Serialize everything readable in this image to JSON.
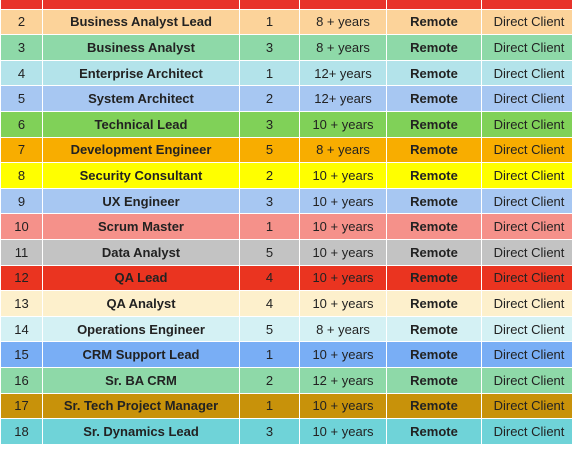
{
  "table": {
    "rows": [
      {
        "no": "",
        "role": "",
        "positions": "",
        "experience": "",
        "location": "",
        "client": "",
        "color": "#e8322a"
      },
      {
        "no": "2",
        "role": "Business Analyst Lead",
        "positions": "1",
        "experience": "8 + years",
        "location": "Remote",
        "client": "Direct Client",
        "color": "#fcd39a"
      },
      {
        "no": "3",
        "role": "Business Analyst",
        "positions": "3",
        "experience": "8 + years",
        "location": "Remote",
        "client": "Direct Client",
        "color": "#8ed9a8"
      },
      {
        "no": "4",
        "role": "Enterprise Architect",
        "positions": "1",
        "experience": "12+ years",
        "location": "Remote",
        "client": "Direct Client",
        "color": "#b3e3ea"
      },
      {
        "no": "5",
        "role": "System Architect",
        "positions": "2",
        "experience": "12+ years",
        "location": "Remote",
        "client": "Direct Client",
        "color": "#a7c7f2"
      },
      {
        "no": "6",
        "role": "Technical Lead",
        "positions": "3",
        "experience": "10 + years",
        "location": "Remote",
        "client": "Direct Client",
        "color": "#80d158"
      },
      {
        "no": "7",
        "role": "Development Engineer",
        "positions": "5",
        "experience": "8 + years",
        "location": "Remote",
        "client": "Direct Client",
        "color": "#f8ad00"
      },
      {
        "no": "8",
        "role": "Security Consultant",
        "positions": "2",
        "experience": "10 + years",
        "location": "Remote",
        "client": "Direct Client",
        "color": "#ffff00"
      },
      {
        "no": "9",
        "role": "UX Engineer",
        "positions": "3",
        "experience": "10 + years",
        "location": "Remote",
        "client": "Direct Client",
        "color": "#a7c7f2"
      },
      {
        "no": "10",
        "role": "Scrum Master",
        "positions": "1",
        "experience": "10 + years",
        "location": "Remote",
        "client": "Direct Client",
        "color": "#f5918a"
      },
      {
        "no": "11",
        "role": "Data Analyst",
        "positions": "5",
        "experience": "10 + years",
        "location": "Remote",
        "client": "Direct Client",
        "color": "#c3c3c3"
      },
      {
        "no": "12",
        "role": "QA Lead",
        "positions": "4",
        "experience": "10 + years",
        "location": "Remote",
        "client": "Direct Client",
        "color": "#ea3420"
      },
      {
        "no": "13",
        "role": "QA Analyst",
        "positions": "4",
        "experience": "10 + years",
        "location": "Remote",
        "client": "Direct Client",
        "color": "#fdf0cc"
      },
      {
        "no": "14",
        "role": "Operations Engineer",
        "positions": "5",
        "experience": "8 + years",
        "location": "Remote",
        "client": "Direct Client",
        "color": "#d4f1f4"
      },
      {
        "no": "15",
        "role": "CRM Support Lead",
        "positions": "1",
        "experience": "10 + years",
        "location": "Remote",
        "client": "Direct Client",
        "color": "#79aef5"
      },
      {
        "no": "16",
        "role": "Sr. BA CRM",
        "positions": "2",
        "experience": "12 + years",
        "location": "Remote",
        "client": "Direct Client",
        "color": "#8ed9a8"
      },
      {
        "no": "17",
        "role": "Sr. Tech Project Manager",
        "positions": "1",
        "experience": "10 + years",
        "location": "Remote",
        "client": "Direct Client",
        "color": "#c8920a"
      },
      {
        "no": "18",
        "role": "Sr. Dynamics Lead",
        "positions": "3",
        "experience": "10 + years",
        "location": "Remote",
        "client": "Direct Client",
        "color": "#6fd3d8"
      }
    ]
  }
}
